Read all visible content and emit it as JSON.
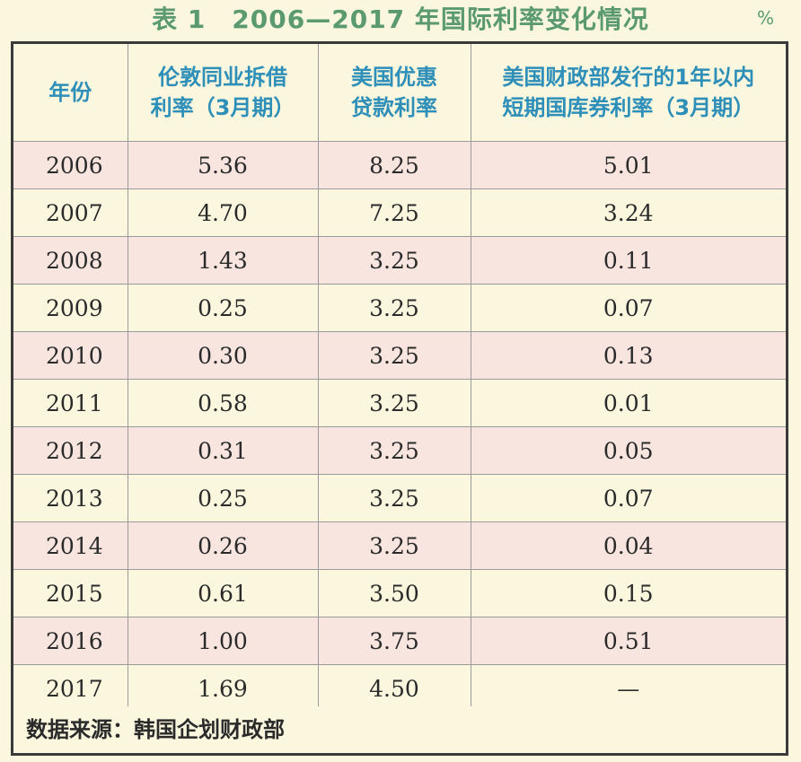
{
  "title": "表 1　2006—2017 年国际利率变化情况",
  "unit": "%",
  "table": {
    "headers": [
      "年份",
      "伦敦同业拆借\n利率（3月期）",
      "美国优惠\n贷款利率",
      "美国财政部发行的1年以内\n短期国库券利率（3月期）"
    ],
    "rows": [
      [
        "2006",
        "5.36",
        "8.25",
        "5.01"
      ],
      [
        "2007",
        "4.70",
        "7.25",
        "3.24"
      ],
      [
        "2008",
        "1.43",
        "3.25",
        "0.11"
      ],
      [
        "2009",
        "0.25",
        "3.25",
        "0.07"
      ],
      [
        "2010",
        "0.30",
        "3.25",
        "0.13"
      ],
      [
        "2011",
        "0.58",
        "3.25",
        "0.01"
      ],
      [
        "2012",
        "0.31",
        "3.25",
        "0.05"
      ],
      [
        "2013",
        "0.25",
        "3.25",
        "0.07"
      ],
      [
        "2014",
        "0.26",
        "3.25",
        "0.04"
      ],
      [
        "2015",
        "0.61",
        "3.50",
        "0.15"
      ],
      [
        "2016",
        "1.00",
        "3.75",
        "0.51"
      ],
      [
        "2017",
        "1.69",
        "4.50",
        "—"
      ]
    ]
  },
  "source": "数据来源：韩国企划财政部",
  "colors": {
    "title": "#5a9a6e",
    "header_text": "#2e8fb8",
    "row_pink": "#f8e5df",
    "row_cream": "#fbf7df",
    "border": "#3a3a3a"
  }
}
